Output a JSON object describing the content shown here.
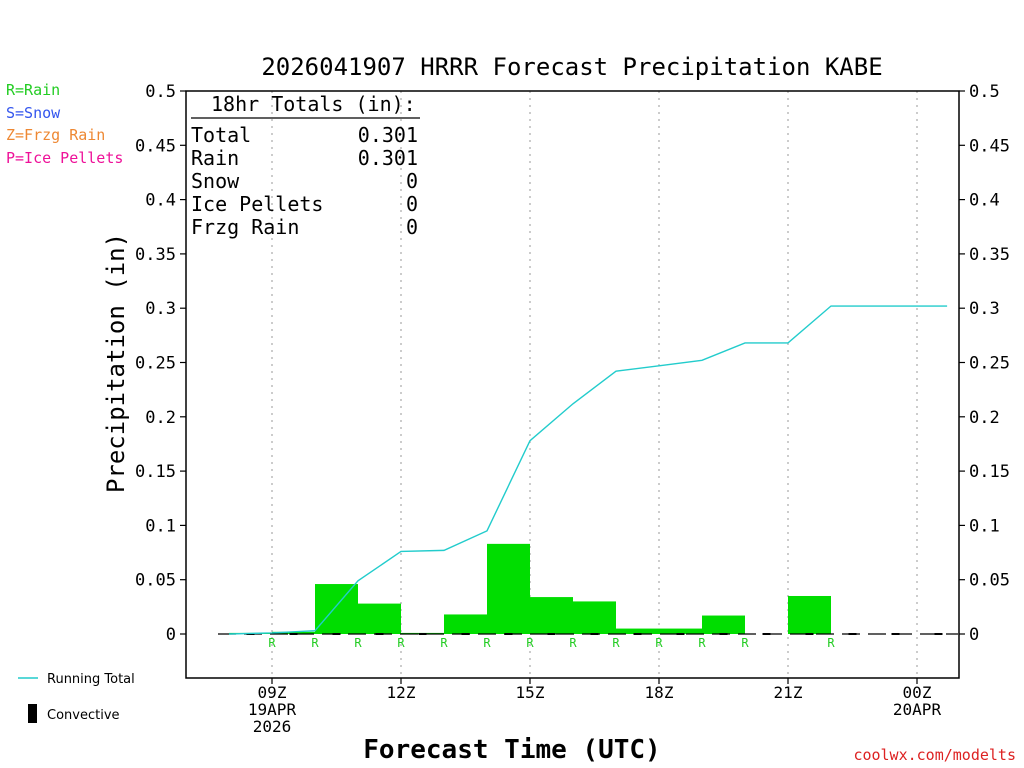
{
  "chart_data": {
    "type": "bar",
    "title": "2026041907 HRRR Forecast Precipitation KABE",
    "xlabel": "Forecast Time (UTC)",
    "ylabel": "Precipitation (in)",
    "ylim": [
      -0.05,
      0.5
    ],
    "yticks": [
      0,
      0.05,
      0.1,
      0.15,
      0.2,
      0.25,
      0.3,
      0.35,
      0.4,
      0.45,
      0.5
    ],
    "ytick_labels": [
      "0",
      "0.05",
      "0.1",
      "0.15",
      "0.2",
      "0.25",
      "0.3",
      "0.35",
      "0.4",
      "0.45",
      "0.5"
    ],
    "x_range_hours": [
      7.5,
      24.7
    ],
    "xticks": [
      {
        "hour": 9,
        "lines": [
          "09Z",
          "19APR",
          "2026"
        ]
      },
      {
        "hour": 12,
        "lines": [
          "12Z"
        ]
      },
      {
        "hour": 15,
        "lines": [
          "15Z"
        ]
      },
      {
        "hour": 18,
        "lines": [
          "18Z"
        ]
      },
      {
        "hour": 21,
        "lines": [
          "21Z"
        ]
      },
      {
        "hour": 24,
        "lines": [
          "00Z",
          "20APR"
        ]
      }
    ],
    "hours": [
      8,
      9,
      10,
      11,
      12,
      13,
      14,
      15,
      16,
      17,
      18,
      19,
      20,
      21,
      22,
      23,
      24,
      25
    ],
    "series": [
      {
        "name": "Hourly Precipitation",
        "color": "#00dd00",
        "values": [
          0,
          0.001,
          0.002,
          0.046,
          0.028,
          0.001,
          0.018,
          0.083,
          0.034,
          0.03,
          0.005,
          0.005,
          0.017,
          0,
          0.035,
          0,
          0,
          0
        ]
      },
      {
        "name": "Running Total",
        "color": "#22cccc",
        "values": [
          0,
          0.001,
          0.003,
          0.049,
          0.076,
          0.077,
          0.095,
          0.178,
          0.212,
          0.242,
          0.247,
          0.252,
          0.268,
          0.268,
          0.302,
          0.302,
          0.302,
          0.302
        ]
      }
    ],
    "ptype_codes": [
      "R",
      "R",
      "R",
      "R",
      "R",
      "R",
      "R",
      "R",
      "R",
      "R",
      "R",
      "R",
      "",
      "R",
      "",
      "",
      ""
    ],
    "ptype_color": "#22cc22",
    "convective_color": "#000000"
  },
  "totals_box": {
    "heading": "18hr Totals (in):",
    "rows": [
      {
        "label": "Total",
        "value": "0.301"
      },
      {
        "label": "Rain",
        "value": "0.301"
      },
      {
        "label": "Snow",
        "value": "0"
      },
      {
        "label": "Ice Pellets",
        "value": "0"
      },
      {
        "label": "Frzg Rain",
        "value": "0"
      }
    ]
  },
  "ptype_legend": [
    {
      "text": "R=Rain",
      "color": "#22cc22"
    },
    {
      "text": "S=Snow",
      "color": "#3355ee"
    },
    {
      "text": "Z=Frzg Rain",
      "color": "#ee8833"
    },
    {
      "text": "P=Ice Pellets",
      "color": "#ee1199"
    }
  ],
  "line_legend": {
    "running_total": "Running Total",
    "convective": "Convective"
  },
  "credit": "coolwx.com/modelts"
}
